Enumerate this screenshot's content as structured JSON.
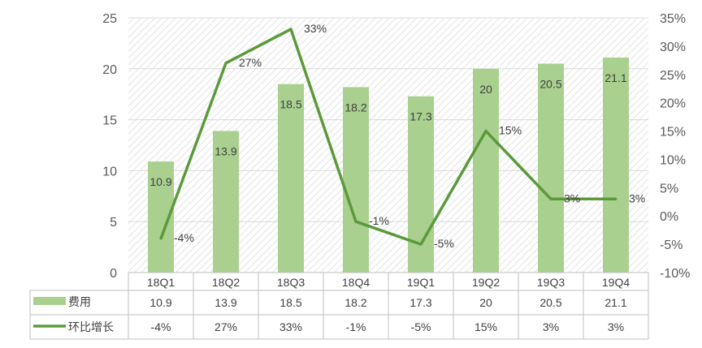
{
  "chart_data": {
    "type": "bar+line",
    "categories": [
      "18Q1",
      "18Q2",
      "18Q3",
      "18Q4",
      "19Q1",
      "19Q2",
      "19Q3",
      "19Q4"
    ],
    "series": [
      {
        "name": "费用",
        "type": "bar",
        "axis": "left",
        "values": [
          10.9,
          13.9,
          18.5,
          18.2,
          17.3,
          20,
          20.5,
          21.1
        ],
        "labels": [
          "10.9",
          "13.9",
          "18.5",
          "18.2",
          "17.3",
          "20",
          "20.5",
          "21.1"
        ],
        "color": "#a9d08e"
      },
      {
        "name": "环比增长",
        "type": "line",
        "axis": "right",
        "values": [
          -4,
          27,
          33,
          -1,
          -5,
          15,
          3,
          3
        ],
        "labels": [
          "-4%",
          "27%",
          "33%",
          "-1%",
          "-5%",
          "15%",
          "3%",
          "3%"
        ],
        "color": "#5b9a3a"
      }
    ],
    "y_left": {
      "min": 0,
      "max": 25,
      "step": 5,
      "ticks": [
        "0",
        "5",
        "10",
        "15",
        "20",
        "25"
      ]
    },
    "y_right": {
      "min": -10,
      "max": 35,
      "step": 5,
      "ticks": [
        "-10%",
        "-5%",
        "0%",
        "5%",
        "10%",
        "15%",
        "20%",
        "25%",
        "30%",
        "35%"
      ]
    },
    "grid": true,
    "data_table": true,
    "legend_position": "data-table",
    "colors": {
      "bar": "#a9d08e",
      "line": "#5b9a3a",
      "grid": "#d9d9d9",
      "text": "#595959"
    }
  }
}
